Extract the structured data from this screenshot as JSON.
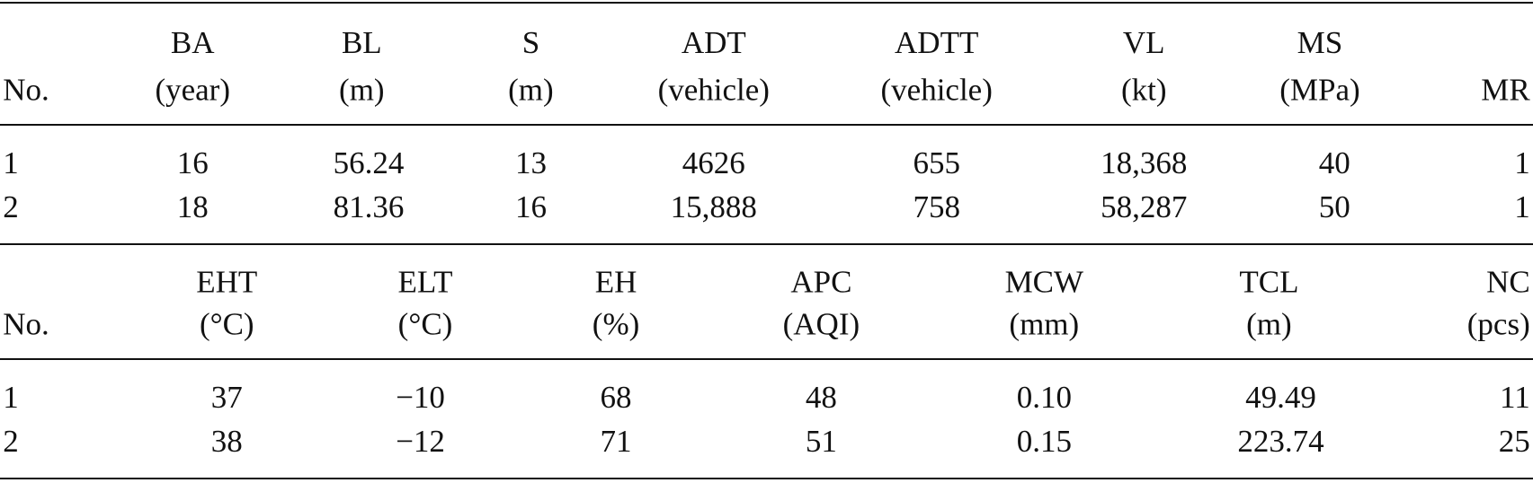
{
  "table1": {
    "header": [
      [
        "No."
      ],
      [
        "BA",
        "(year)"
      ],
      [
        "BL",
        "(m)"
      ],
      [
        "S",
        "(m)"
      ],
      [
        "ADT",
        "(vehicle)"
      ],
      [
        "ADTT",
        "(vehicle)"
      ],
      [
        "VL",
        "(kt)"
      ],
      [
        "MS",
        "(MPa)"
      ],
      [
        "MR"
      ]
    ],
    "rows": [
      [
        "1",
        "16",
        "56.24",
        "13",
        "4626",
        "655",
        "18,368",
        "40",
        "1"
      ],
      [
        "2",
        "18",
        "81.36",
        "16",
        "15,888",
        "758",
        "58,287",
        "50",
        "1"
      ]
    ]
  },
  "table2": {
    "header": [
      [
        "No."
      ],
      [
        "EHT",
        "(°C)"
      ],
      [
        "ELT",
        "(°C)"
      ],
      [
        "EH",
        "(%)"
      ],
      [
        "APC",
        "(AQI)"
      ],
      [
        "MCW",
        "(mm)"
      ],
      [
        "TCL",
        "(m)"
      ],
      [
        "NC",
        "(pcs)"
      ]
    ],
    "rows": [
      [
        "1",
        "37",
        "−10",
        "68",
        "48",
        "0.10",
        "49.49",
        "11"
      ],
      [
        "2",
        "38",
        "−12",
        "71",
        "51",
        "0.15",
        "223.74",
        "25"
      ]
    ]
  }
}
